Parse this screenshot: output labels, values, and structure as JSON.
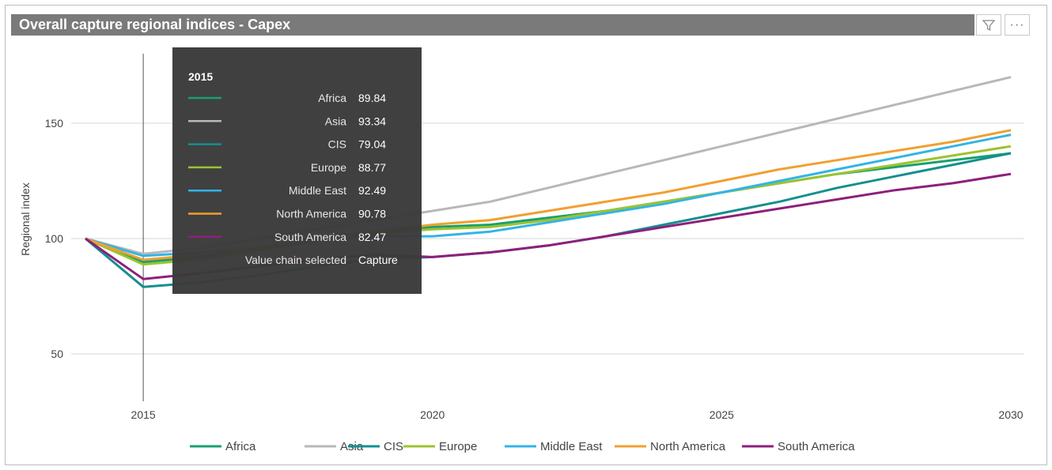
{
  "header": {
    "title": "Overall capture regional indices - Capex",
    "filter_icon": "filter-icon",
    "more_icon": "more-options-icon",
    "more_glyph": "···"
  },
  "chart_data": {
    "type": "line",
    "title": "Overall capture regional indices - Capex",
    "xlabel": "",
    "ylabel": "Regional index",
    "x": [
      2014,
      2015,
      2016,
      2017,
      2018,
      2019,
      2020,
      2021,
      2022,
      2023,
      2024,
      2025,
      2026,
      2027,
      2028,
      2029,
      2030
    ],
    "xlim": [
      2014,
      2030
    ],
    "ylim": [
      30,
      175
    ],
    "xticks": [
      2015,
      2020,
      2025,
      2030
    ],
    "yticks": [
      50,
      100,
      150
    ],
    "grid": true,
    "legend_position": "bottom",
    "series": [
      {
        "name": "Africa",
        "color": "#1aa06e",
        "values": [
          100,
          89.84,
          92,
          96,
          100,
          103,
          105,
          106,
          109,
          112,
          116,
          120,
          124,
          128,
          131,
          134,
          137
        ]
      },
      {
        "name": "Asia",
        "color": "#b8b8b8",
        "values": [
          100,
          93.34,
          96,
          100,
          104,
          108,
          112,
          116,
          122,
          128,
          134,
          140,
          146,
          152,
          158,
          164,
          170
        ]
      },
      {
        "name": "CIS",
        "color": "#148f8f",
        "values": [
          100,
          79.04,
          81,
          84,
          88,
          91,
          92,
          94,
          97,
          101,
          106,
          111,
          116,
          122,
          127,
          132,
          137
        ]
      },
      {
        "name": "Europe",
        "color": "#9dc32e",
        "values": [
          100,
          88.77,
          91,
          95,
          99,
          102,
          104,
          105,
          108,
          112,
          116,
          120,
          124,
          128,
          132,
          136,
          140
        ]
      },
      {
        "name": "Middle East",
        "color": "#33b4e6",
        "values": [
          100,
          92.49,
          94,
          96,
          99,
          101,
          101,
          103,
          107,
          111,
          115,
          120,
          125,
          130,
          135,
          140,
          145
        ]
      },
      {
        "name": "North America",
        "color": "#f0a030",
        "values": [
          100,
          90.78,
          93,
          96,
          100,
          103,
          106,
          108,
          112,
          116,
          120,
          125,
          130,
          134,
          138,
          142,
          147
        ]
      },
      {
        "name": "South America",
        "color": "#8e1f7c",
        "values": [
          100,
          82.47,
          85,
          88,
          91,
          93,
          92,
          94,
          97,
          101,
          105,
          109,
          113,
          117,
          121,
          124,
          128
        ]
      }
    ],
    "tooltip": {
      "year": "2015",
      "rows": [
        {
          "label": "Africa",
          "value": "89.84"
        },
        {
          "label": "Asia",
          "value": "93.34"
        },
        {
          "label": "CIS",
          "value": "79.04"
        },
        {
          "label": "Europe",
          "value": "88.77"
        },
        {
          "label": "Middle East",
          "value": "92.49"
        },
        {
          "label": "North America",
          "value": "90.78"
        },
        {
          "label": "South America",
          "value": "82.47"
        }
      ],
      "extra_label": "Value chain selected",
      "extra_value": "Capture"
    }
  }
}
